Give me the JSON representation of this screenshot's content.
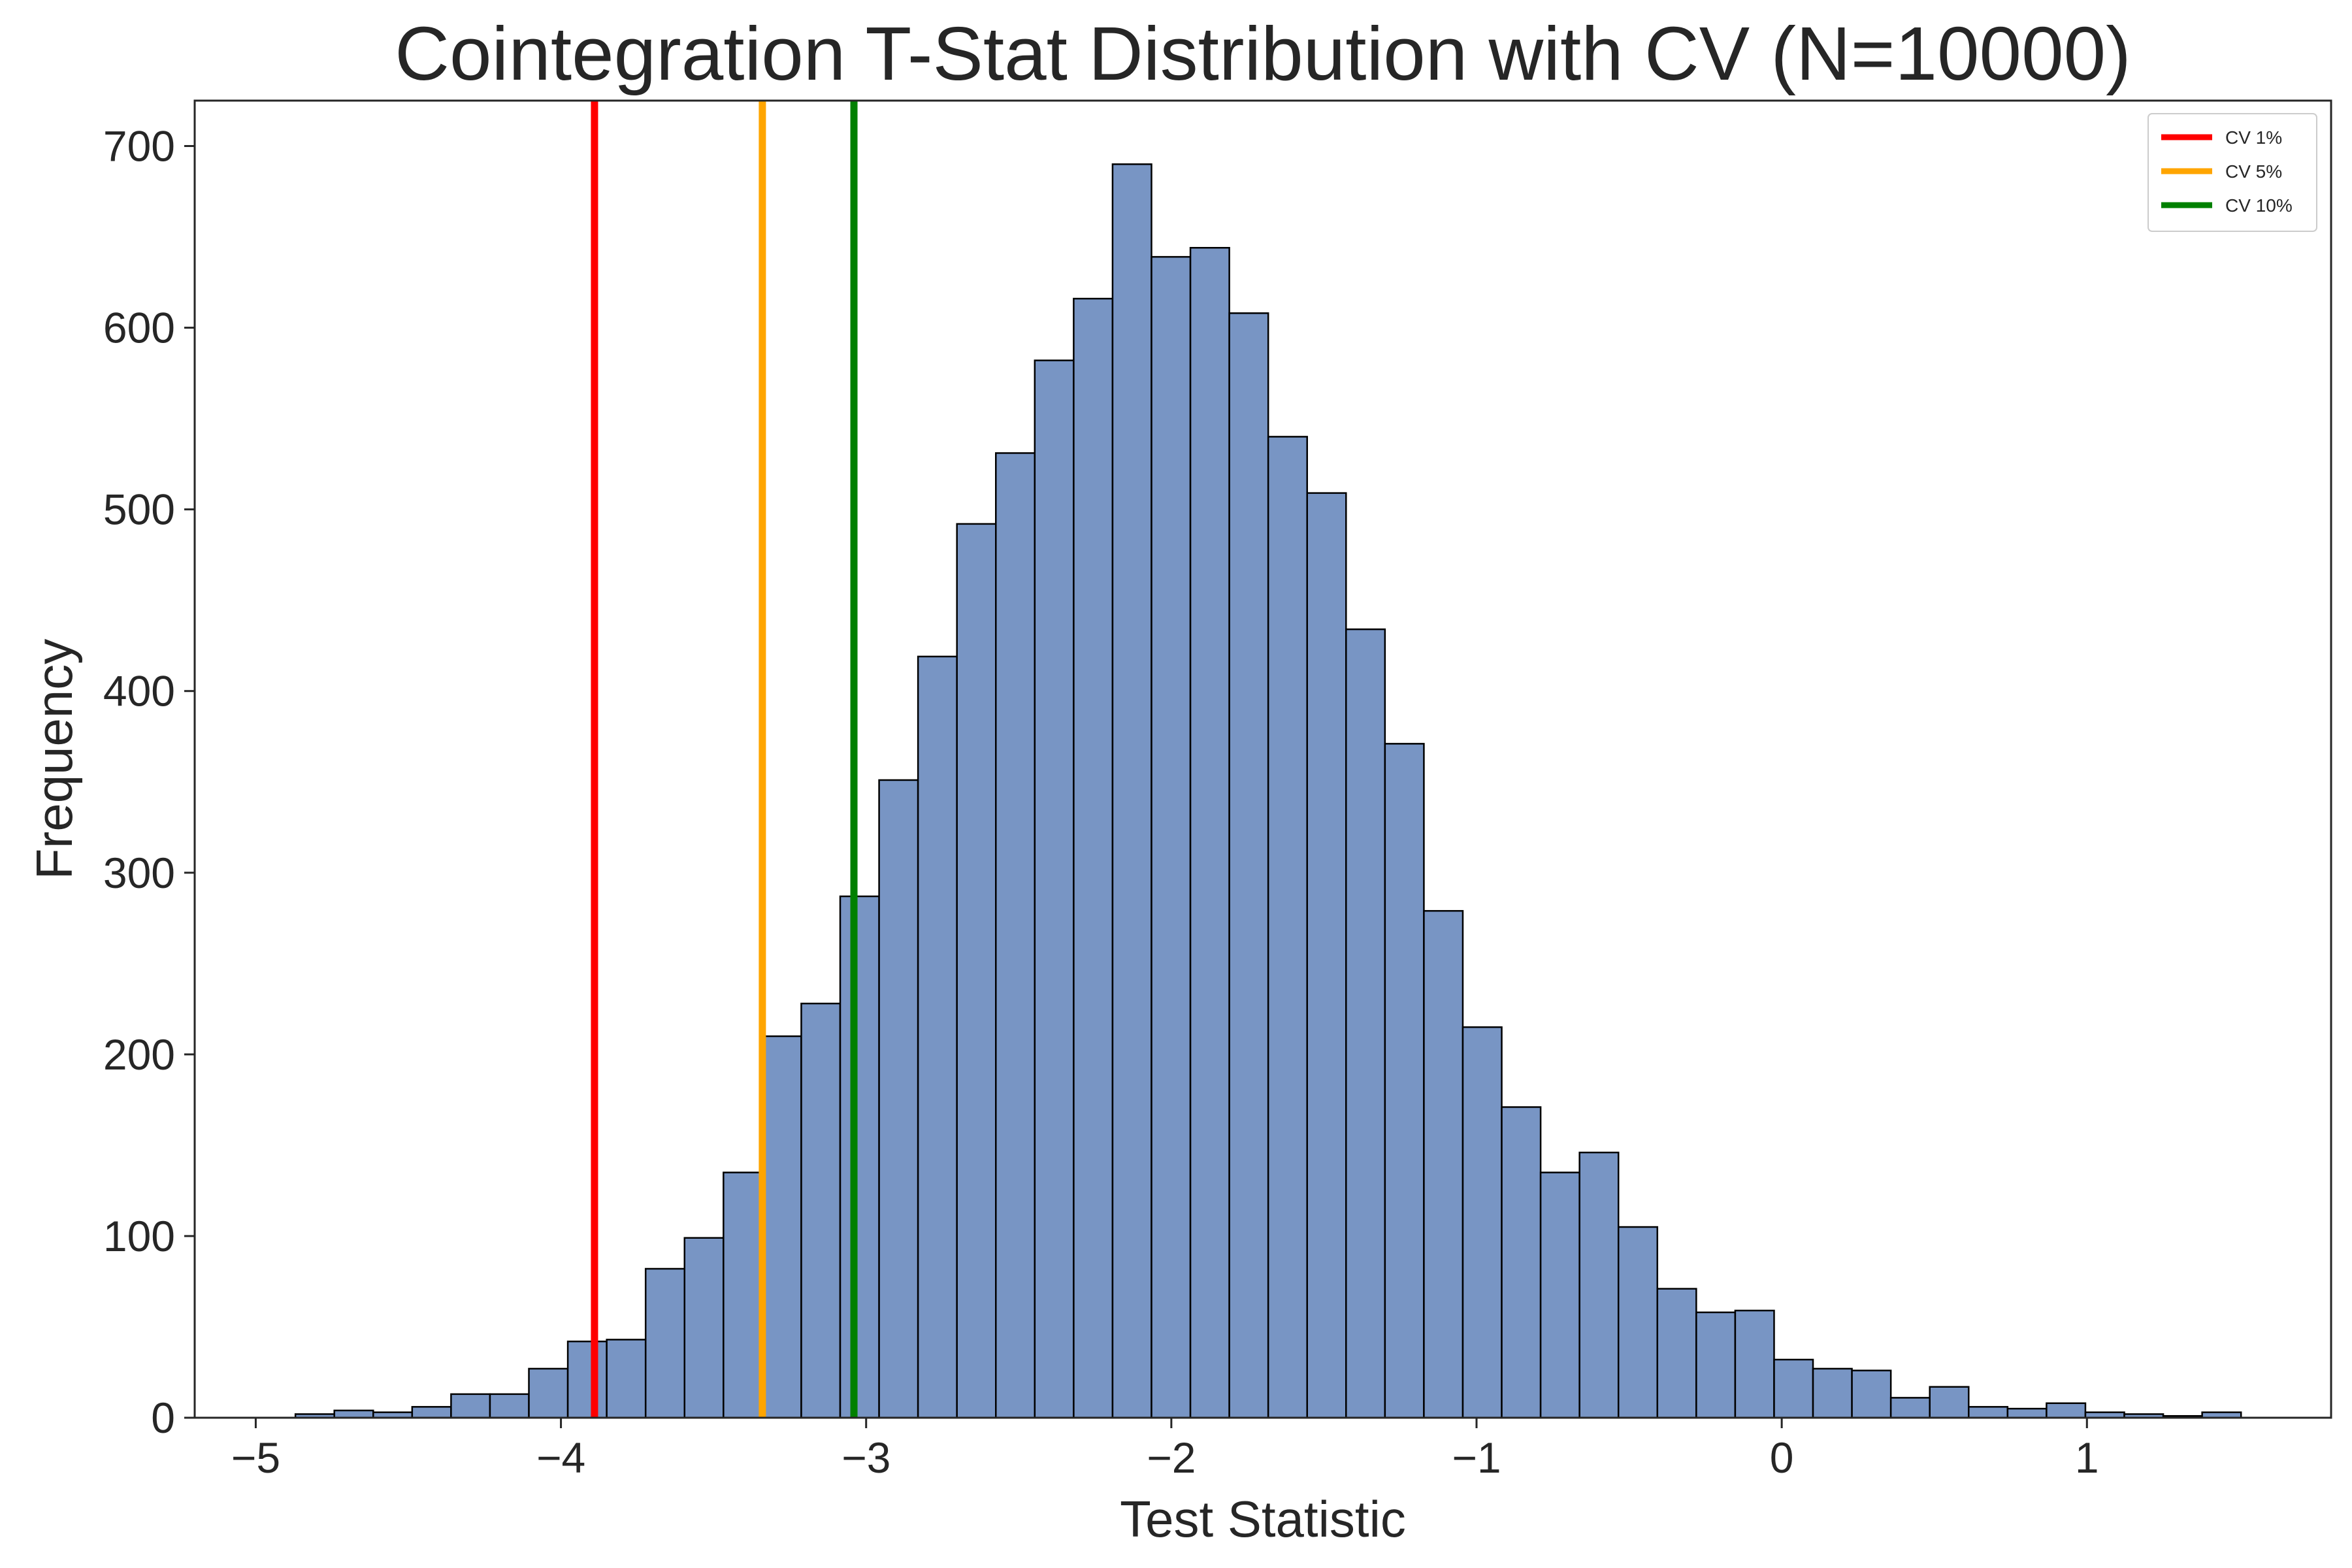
{
  "chart_data": {
    "type": "bar",
    "title": "Cointegration T-Stat Distribution with CV (N=10000)",
    "xlabel": "Test Statistic",
    "ylabel": "Frequency",
    "xlim": [
      -5.2,
      1.8
    ],
    "ylim": [
      0,
      725
    ],
    "xticks": [
      -5,
      -4,
      -3,
      -2,
      -1,
      0,
      1
    ],
    "xtick_labels": [
      "−5",
      "−4",
      "−3",
      "−2",
      "−1",
      "0",
      "1"
    ],
    "yticks": [
      0,
      100,
      200,
      300,
      400,
      500,
      600,
      700
    ],
    "ytick_labels": [
      "0",
      "100",
      "200",
      "300",
      "400",
      "500",
      "600",
      "700"
    ],
    "grid": false,
    "bar_color": "#7895c4",
    "bar_edge_color": "#000000",
    "bin_width": 0.1275,
    "bins": [
      {
        "x": -4.87,
        "value": 2
      },
      {
        "x": -4.7425,
        "value": 4
      },
      {
        "x": -4.615,
        "value": 3
      },
      {
        "x": -4.4875,
        "value": 6
      },
      {
        "x": -4.36,
        "value": 13
      },
      {
        "x": -4.2325,
        "value": 13
      },
      {
        "x": -4.105,
        "value": 27
      },
      {
        "x": -3.9775,
        "value": 42
      },
      {
        "x": -3.85,
        "value": 43
      },
      {
        "x": -3.7225,
        "value": 82
      },
      {
        "x": -3.595,
        "value": 99
      },
      {
        "x": -3.4675,
        "value": 135
      },
      {
        "x": -3.34,
        "value": 210
      },
      {
        "x": -3.2125,
        "value": 228
      },
      {
        "x": -3.085,
        "value": 287
      },
      {
        "x": -2.9575,
        "value": 351
      },
      {
        "x": -2.83,
        "value": 419
      },
      {
        "x": -2.7025,
        "value": 492
      },
      {
        "x": -2.575,
        "value": 531
      },
      {
        "x": -2.4475,
        "value": 582
      },
      {
        "x": -2.32,
        "value": 616
      },
      {
        "x": -2.1925,
        "value": 690
      },
      {
        "x": -2.065,
        "value": 639
      },
      {
        "x": -1.9375,
        "value": 644
      },
      {
        "x": -1.81,
        "value": 608
      },
      {
        "x": -1.6825,
        "value": 540
      },
      {
        "x": -1.555,
        "value": 509
      },
      {
        "x": -1.4275,
        "value": 434
      },
      {
        "x": -1.3,
        "value": 371
      },
      {
        "x": -1.1725,
        "value": 279
      },
      {
        "x": -1.045,
        "value": 215
      },
      {
        "x": -0.9175,
        "value": 171
      },
      {
        "x": -0.79,
        "value": 135
      },
      {
        "x": -0.6625,
        "value": 146
      },
      {
        "x": -0.535,
        "value": 105
      },
      {
        "x": -0.4075,
        "value": 71
      },
      {
        "x": -0.28,
        "value": 58
      },
      {
        "x": -0.1525,
        "value": 59
      },
      {
        "x": -0.025,
        "value": 32
      },
      {
        "x": 0.1025,
        "value": 27
      },
      {
        "x": 0.23,
        "value": 26
      },
      {
        "x": 0.3575,
        "value": 11
      },
      {
        "x": 0.485,
        "value": 17
      },
      {
        "x": 0.6125,
        "value": 6
      },
      {
        "x": 0.74,
        "value": 5
      },
      {
        "x": 0.8675,
        "value": 8
      },
      {
        "x": 0.995,
        "value": 3
      },
      {
        "x": 1.1225,
        "value": 2
      },
      {
        "x": 1.25,
        "value": 1
      },
      {
        "x": 1.3775,
        "value": 3
      }
    ],
    "vlines": [
      {
        "name": "CV 1%",
        "x": -3.89,
        "color": "#ff0000"
      },
      {
        "name": "CV 5%",
        "x": -3.34,
        "color": "#ffa500"
      },
      {
        "name": "CV 10%",
        "x": -3.04,
        "color": "#008000"
      }
    ],
    "legend_position": "top-right"
  }
}
